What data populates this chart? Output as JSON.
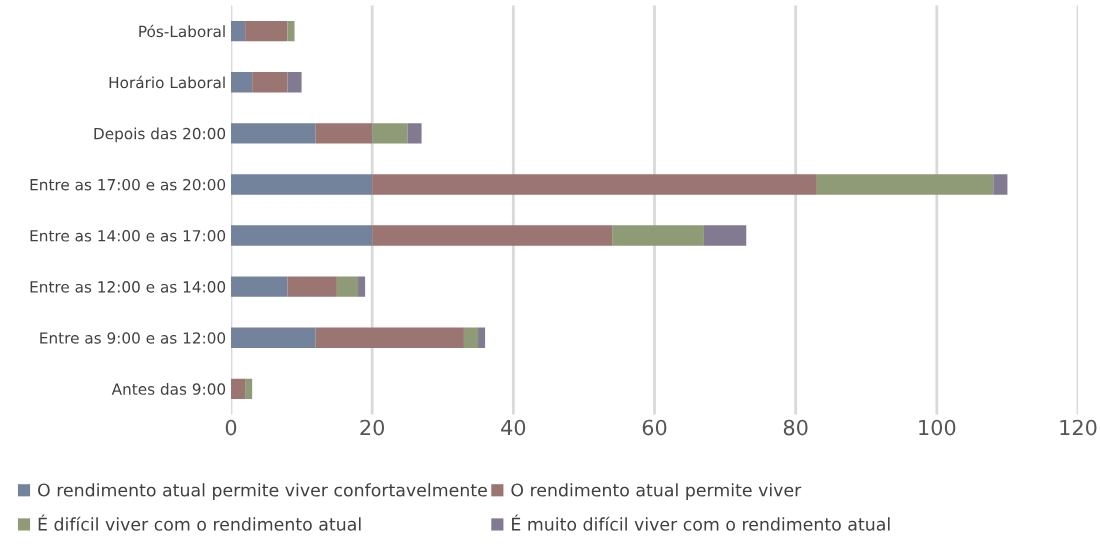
{
  "chart_data": {
    "type": "bar",
    "orientation": "horizontal",
    "stacked": true,
    "categories": [
      "Pós-Laboral",
      "Horário Laboral",
      "Depois das 20:00",
      "Entre as 17:00 e as 20:00",
      "Entre as 14:00 e as 17:00",
      "Entre as 12:00 e as 14:00",
      "Entre as 9:00 e as 12:00",
      "Antes das 9:00"
    ],
    "series": [
      {
        "name": "O rendimento atual permite viver confortavelmente",
        "color": "#72839b",
        "values": [
          2,
          3,
          12,
          20,
          20,
          8,
          12,
          0
        ]
      },
      {
        "name": "O rendimento atual permite viver",
        "color": "#9b7571",
        "values": [
          6,
          5,
          8,
          63,
          34,
          7,
          21,
          2
        ]
      },
      {
        "name": "É difícil viver com o rendimento atual",
        "color": "#8f9a77",
        "values": [
          1,
          0,
          5,
          25,
          13,
          3,
          2,
          1
        ]
      },
      {
        "name": "É muito difícil viver com o rendimento atual",
        "color": "#827a90",
        "values": [
          0,
          2,
          2,
          2,
          6,
          1,
          1,
          0
        ]
      }
    ],
    "xlim": [
      0,
      120
    ],
    "xticks": [
      0,
      20,
      40,
      60,
      80,
      100,
      120
    ],
    "grid": "x",
    "legend": "bottom"
  }
}
